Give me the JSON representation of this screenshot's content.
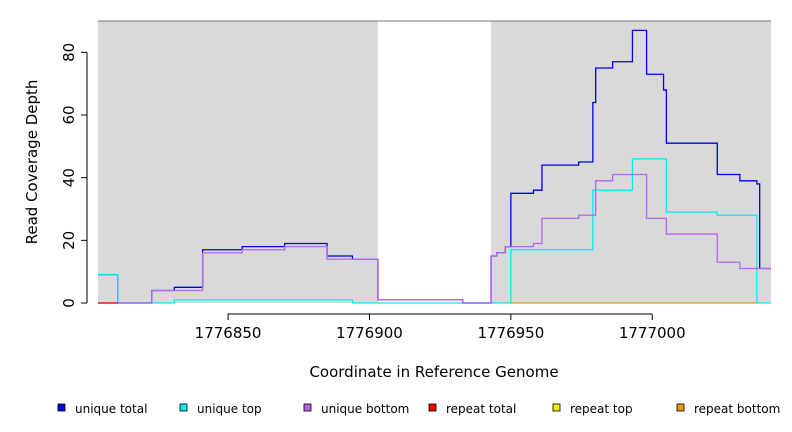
{
  "chart_data": {
    "type": "line",
    "style": "step",
    "xlabel": "Coordinate in Reference Genome",
    "ylabel": "Read Coverage Depth",
    "xlim": [
      1776804,
      1777042
    ],
    "ylim": [
      0,
      90
    ],
    "xticks": [
      1776850,
      1776900,
      1776950,
      1777000
    ],
    "yticks": [
      0,
      20,
      40,
      60,
      80
    ],
    "background": {
      "plot_fill": "#d9d9d9",
      "gap_fill": "#ffffff",
      "gap_range": [
        1776903,
        1776943
      ]
    },
    "legend_position": "bottom",
    "series": [
      {
        "name": "unique total",
        "color": "#0000ee",
        "points": [
          [
            1776804,
            9
          ],
          [
            1776811,
            0
          ],
          [
            1776823,
            4
          ],
          [
            1776831,
            5
          ],
          [
            1776841,
            17
          ],
          [
            1776855,
            18
          ],
          [
            1776870,
            19
          ],
          [
            1776885,
            15
          ],
          [
            1776894,
            14
          ],
          [
            1776903,
            1
          ],
          [
            1776933,
            0
          ],
          [
            1776943,
            15
          ],
          [
            1776945,
            16
          ],
          [
            1776948,
            18
          ],
          [
            1776950,
            35
          ],
          [
            1776958,
            36
          ],
          [
            1776961,
            44
          ],
          [
            1776974,
            45
          ],
          [
            1776979,
            64
          ],
          [
            1776980,
            75
          ],
          [
            1776986,
            77
          ],
          [
            1776993,
            87
          ],
          [
            1776998,
            73
          ],
          [
            1777004,
            68
          ],
          [
            1777005,
            51
          ],
          [
            1777023,
            41
          ],
          [
            1777031,
            39
          ],
          [
            1777037,
            38
          ],
          [
            1777038,
            11
          ],
          [
            1777042,
            11
          ]
        ]
      },
      {
        "name": "unique top",
        "color": "#00eeee",
        "points": [
          [
            1776804,
            9
          ],
          [
            1776811,
            0
          ],
          [
            1776831,
            1
          ],
          [
            1776894,
            0
          ],
          [
            1776943,
            0
          ],
          [
            1776950,
            17
          ],
          [
            1776979,
            36
          ],
          [
            1776993,
            46
          ],
          [
            1777005,
            29
          ],
          [
            1777023,
            28
          ],
          [
            1777037,
            0
          ],
          [
            1777042,
            0
          ]
        ]
      },
      {
        "name": "unique bottom",
        "color": "#b266ee",
        "points": [
          [
            1776804,
            0
          ],
          [
            1776823,
            4
          ],
          [
            1776841,
            16
          ],
          [
            1776855,
            17
          ],
          [
            1776870,
            18
          ],
          [
            1776885,
            14
          ],
          [
            1776894,
            14
          ],
          [
            1776903,
            1
          ],
          [
            1776933,
            0
          ],
          [
            1776943,
            15
          ],
          [
            1776945,
            16
          ],
          [
            1776948,
            18
          ],
          [
            1776958,
            19
          ],
          [
            1776961,
            27
          ],
          [
            1776974,
            28
          ],
          [
            1776980,
            39
          ],
          [
            1776986,
            41
          ],
          [
            1776998,
            27
          ],
          [
            1777005,
            22
          ],
          [
            1777023,
            13
          ],
          [
            1777031,
            11
          ],
          [
            1777042,
            11
          ]
        ]
      },
      {
        "name": "repeat total",
        "color": "#ee0000",
        "points": [
          [
            1776804,
            0
          ],
          [
            1776811,
            0
          ]
        ]
      },
      {
        "name": "repeat top",
        "color": "#eeee00",
        "points": []
      },
      {
        "name": "repeat bottom",
        "color": "#ee9a00",
        "points": [
          [
            1776950,
            0
          ],
          [
            1777037,
            0
          ]
        ]
      }
    ]
  }
}
